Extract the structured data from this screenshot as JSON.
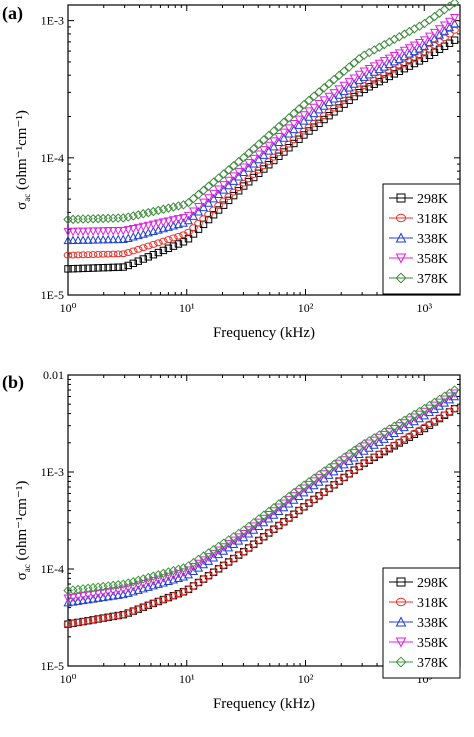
{
  "chart_data": [
    {
      "type": "scatter",
      "panel_label": "(a)",
      "xlabel": "Frequency (kHz)",
      "ylabel": "σ",
      "ylabel_sub": "ac",
      "ylabel_units": "(ohm⁻¹cm⁻¹)",
      "xscale": "log",
      "yscale": "log",
      "xlim": [
        1,
        2000
      ],
      "ylim": [
        1e-05,
        0.0013
      ],
      "xticks": [
        {
          "value": 1,
          "label": "10⁰"
        },
        {
          "value": 10,
          "label": "10¹"
        },
        {
          "value": 100,
          "label": "10²"
        },
        {
          "value": 1000,
          "label": "10³"
        }
      ],
      "yticks": [
        {
          "value": 1e-05,
          "label": "1E-5"
        },
        {
          "value": 0.0001,
          "label": "1E-4"
        },
        {
          "value": 0.001,
          "label": "1E-3"
        }
      ],
      "legend_position": "bottom-right",
      "series": [
        {
          "name": "298K",
          "marker": "square",
          "color": "#000000",
          "x": [
            1,
            3,
            10,
            30,
            100,
            300,
            1000,
            1800
          ],
          "y": [
            1.55e-05,
            1.6e-05,
            2.5e-05,
            6.2e-05,
            0.00015,
            0.00031,
            0.00053,
            0.00072
          ]
        },
        {
          "name": "318K",
          "marker": "circle",
          "color": "#e8302a",
          "x": [
            1,
            3,
            10,
            30,
            100,
            300,
            1000,
            1800
          ],
          "y": [
            1.95e-05,
            2e-05,
            2.8e-05,
            6.5e-05,
            0.00016,
            0.00033,
            0.00058,
            0.00085
          ]
        },
        {
          "name": "338K",
          "marker": "triangle-up",
          "color": "#1f3fd0",
          "x": [
            1,
            3,
            10,
            30,
            100,
            300,
            1000,
            1800
          ],
          "y": [
            2.5e-05,
            2.55e-05,
            3.4e-05,
            7.8e-05,
            0.00019,
            0.00038,
            0.00065,
            0.00095
          ]
        },
        {
          "name": "358K",
          "marker": "triangle-down",
          "color": "#e020e0",
          "x": [
            1,
            3,
            10,
            30,
            100,
            300,
            1000,
            1800
          ],
          "y": [
            2.9e-05,
            2.95e-05,
            3.7e-05,
            8.5e-05,
            0.00021,
            0.00042,
            0.00072,
            0.00105
          ]
        },
        {
          "name": "378K",
          "marker": "diamond",
          "color": "#3a8a3a",
          "x": [
            1,
            3,
            10,
            30,
            100,
            300,
            1000,
            1800
          ],
          "y": [
            3.55e-05,
            3.65e-05,
            4.6e-05,
            0.0001,
            0.00025,
            0.00055,
            0.00095,
            0.00135
          ]
        }
      ]
    },
    {
      "type": "scatter",
      "panel_label": "(b)",
      "xlabel": "Frequency (kHz)",
      "ylabel": "σ",
      "ylabel_sub": "ac",
      "ylabel_units": "(ohm⁻¹cm⁻¹)",
      "xscale": "log",
      "yscale": "log",
      "xlim": [
        1,
        2000
      ],
      "ylim": [
        1e-05,
        0.01
      ],
      "xticks": [
        {
          "value": 1,
          "label": "10⁰"
        },
        {
          "value": 10,
          "label": "10¹"
        },
        {
          "value": 100,
          "label": "10²"
        },
        {
          "value": 1000,
          "label": "10³"
        }
      ],
      "yticks": [
        {
          "value": 1e-05,
          "label": "1E-5"
        },
        {
          "value": 0.0001,
          "label": "1E-4"
        },
        {
          "value": 0.001,
          "label": "1E-3"
        },
        {
          "value": 0.01,
          "label": "0.01"
        }
      ],
      "legend_position": "bottom-right",
      "series": [
        {
          "name": "298K",
          "marker": "square",
          "color": "#000000",
          "x": [
            1,
            3,
            10,
            30,
            100,
            300,
            1000,
            1800
          ],
          "y": [
            2.7e-05,
            3.4e-05,
            6e-05,
            0.00015,
            0.00045,
            0.0012,
            0.0028,
            0.0045
          ]
        },
        {
          "name": "318K",
          "marker": "circle",
          "color": "#e8302a",
          "x": [
            1,
            3,
            10,
            30,
            100,
            300,
            1000,
            1800
          ],
          "y": [
            2.7e-05,
            3.4e-05,
            6e-05,
            0.00015,
            0.00045,
            0.0012,
            0.0029,
            0.0045
          ]
        },
        {
          "name": "338K",
          "marker": "triangle-up",
          "color": "#1f3fd0",
          "x": [
            1,
            3,
            10,
            30,
            100,
            300,
            1000,
            1800
          ],
          "y": [
            4.5e-05,
            5.5e-05,
            8.5e-05,
            0.00021,
            0.00063,
            0.0016,
            0.0038,
            0.006
          ]
        },
        {
          "name": "358K",
          "marker": "triangle-down",
          "color": "#e020e0",
          "x": [
            1,
            3,
            10,
            30,
            100,
            300,
            1000,
            1800
          ],
          "y": [
            5e-05,
            6.2e-05,
            9.5e-05,
            0.00023,
            0.0007,
            0.0018,
            0.0042,
            0.0065
          ]
        },
        {
          "name": "378K",
          "marker": "diamond",
          "color": "#3a9a3a",
          "x": [
            1,
            3,
            10,
            30,
            100,
            300,
            1000,
            1800
          ],
          "y": [
            6e-05,
            7e-05,
            0.000105,
            0.00025,
            0.00075,
            0.0019,
            0.0045,
            0.007
          ]
        }
      ]
    }
  ]
}
